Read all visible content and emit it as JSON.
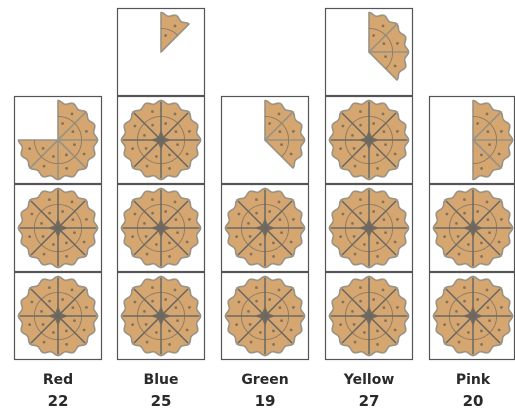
{
  "chart_data": {
    "type": "bar",
    "style": "pictogram",
    "icon": "pizza-icon",
    "slices_per_icon": 8,
    "categories": [
      "Red",
      "Blue",
      "Green",
      "Yellow",
      "Pink"
    ],
    "values": [
      22,
      25,
      19,
      27,
      20
    ],
    "title": "",
    "xlabel": "",
    "ylabel": ""
  },
  "colors": {
    "crust": "#9a9283",
    "base": "#d5a670",
    "spoke": "#6b655d",
    "cell_border": "#555555",
    "text": "#2a2a2a"
  }
}
